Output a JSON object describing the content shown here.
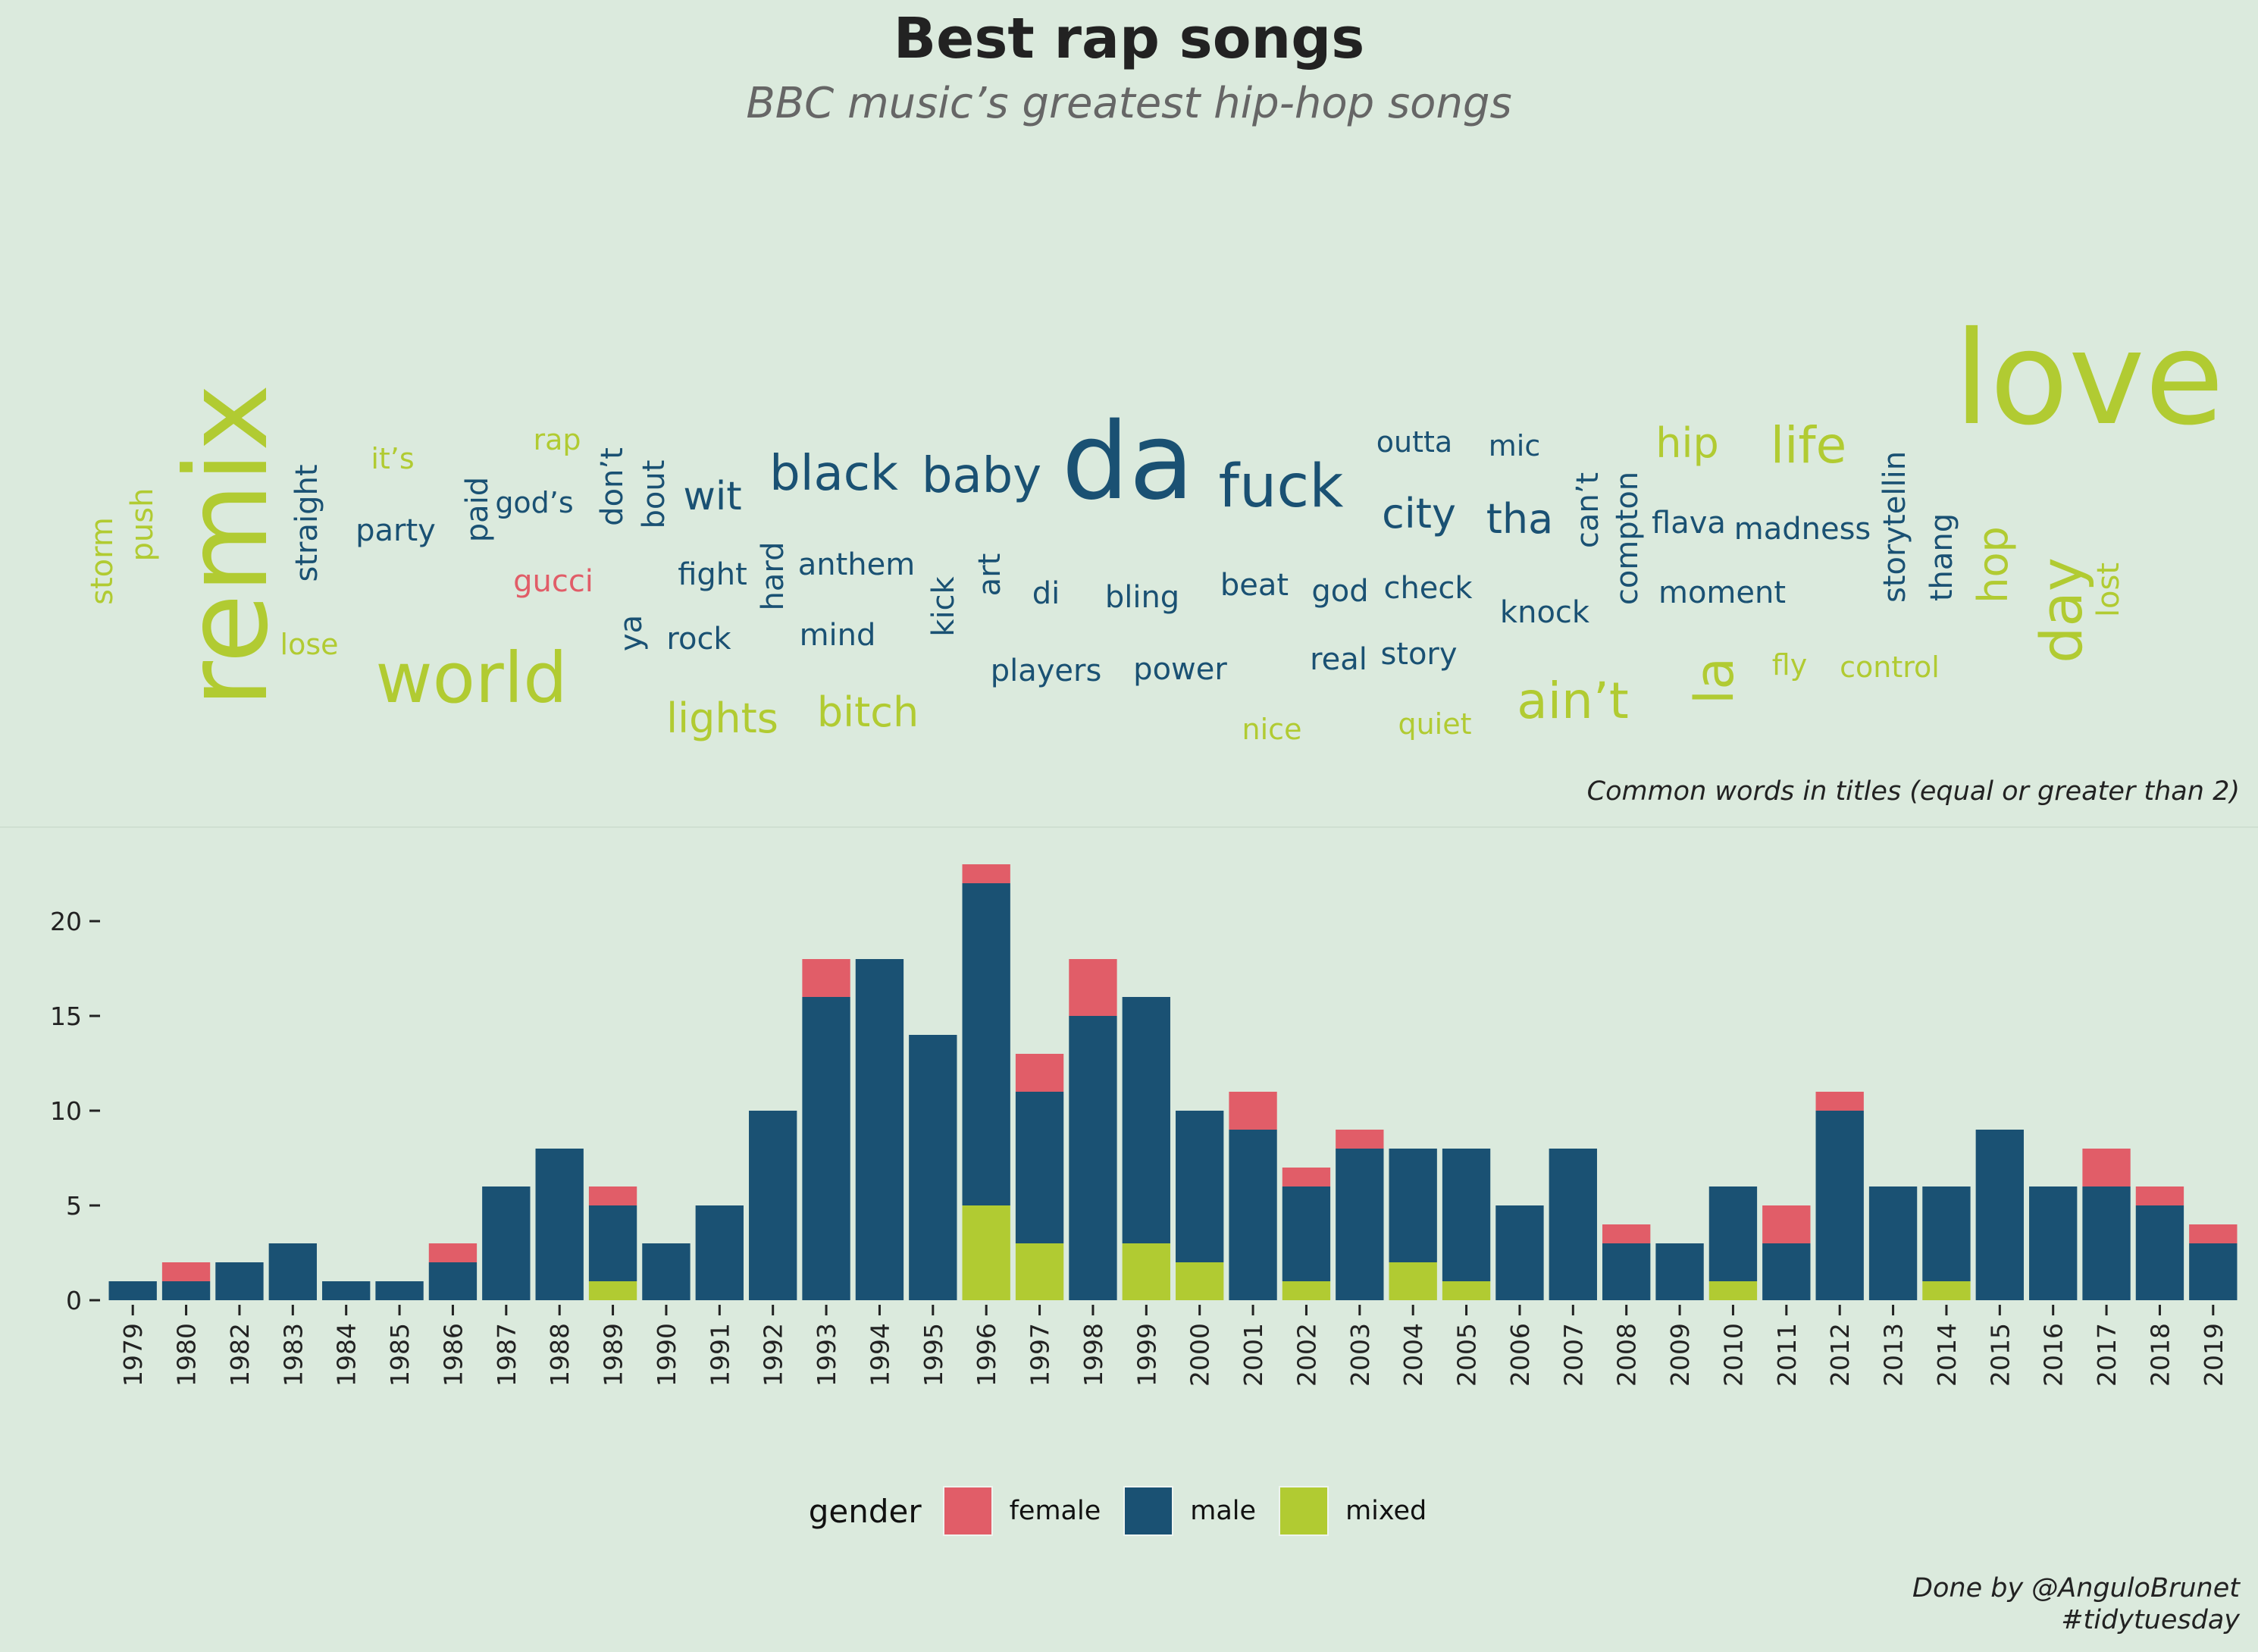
{
  "title": "Best rap songs",
  "subtitle": "BBC music’s greatest hip-hop songs",
  "wordcloud": {
    "caption": "Common words in titles (equal or greater than 2)",
    "colors": {
      "female": "#e15d68",
      "male": "#1a5173",
      "mixed": "#b1cb32"
    },
    "words": [
      {
        "text": "storm",
        "gender": "mixed"
      },
      {
        "text": "push",
        "gender": "mixed"
      },
      {
        "text": "remix",
        "gender": "mixed"
      },
      {
        "text": "straight",
        "gender": "male"
      },
      {
        "text": "it’s",
        "gender": "mixed"
      },
      {
        "text": "party",
        "gender": "male"
      },
      {
        "text": "lose",
        "gender": "mixed"
      },
      {
        "text": "world",
        "gender": "mixed"
      },
      {
        "text": "paid",
        "gender": "male"
      },
      {
        "text": "god’s",
        "gender": "male"
      },
      {
        "text": "rap",
        "gender": "mixed"
      },
      {
        "text": "gucci",
        "gender": "female"
      },
      {
        "text": "don’t",
        "gender": "male"
      },
      {
        "text": "bout",
        "gender": "male"
      },
      {
        "text": "ya",
        "gender": "male"
      },
      {
        "text": "wit",
        "gender": "male"
      },
      {
        "text": "fight",
        "gender": "male"
      },
      {
        "text": "rock",
        "gender": "male"
      },
      {
        "text": "lights",
        "gender": "mixed"
      },
      {
        "text": "hard",
        "gender": "male"
      },
      {
        "text": "black",
        "gender": "male"
      },
      {
        "text": "anthem",
        "gender": "male"
      },
      {
        "text": "mind",
        "gender": "male"
      },
      {
        "text": "bitch",
        "gender": "mixed"
      },
      {
        "text": "baby",
        "gender": "male"
      },
      {
        "text": "kick",
        "gender": "male"
      },
      {
        "text": "art",
        "gender": "male"
      },
      {
        "text": "di",
        "gender": "male"
      },
      {
        "text": "players",
        "gender": "male"
      },
      {
        "text": "da",
        "gender": "male"
      },
      {
        "text": "bling",
        "gender": "male"
      },
      {
        "text": "power",
        "gender": "male"
      },
      {
        "text": "fuck",
        "gender": "male"
      },
      {
        "text": "beat",
        "gender": "male"
      },
      {
        "text": "nice",
        "gender": "mixed"
      },
      {
        "text": "god",
        "gender": "male"
      },
      {
        "text": "real",
        "gender": "male"
      },
      {
        "text": "outta",
        "gender": "male"
      },
      {
        "text": "city",
        "gender": "male"
      },
      {
        "text": "check",
        "gender": "male"
      },
      {
        "text": "story",
        "gender": "male"
      },
      {
        "text": "quiet",
        "gender": "mixed"
      },
      {
        "text": "mic",
        "gender": "male"
      },
      {
        "text": "tha",
        "gender": "male"
      },
      {
        "text": "knock",
        "gender": "male"
      },
      {
        "text": "ain’t",
        "gender": "mixed"
      },
      {
        "text": "can’t",
        "gender": "male"
      },
      {
        "text": "compton",
        "gender": "male"
      },
      {
        "text": "hip",
        "gender": "mixed"
      },
      {
        "text": "flava",
        "gender": "male"
      },
      {
        "text": "moment",
        "gender": "male"
      },
      {
        "text": "la",
        "gender": "mixed"
      },
      {
        "text": "life",
        "gender": "mixed"
      },
      {
        "text": "madness",
        "gender": "male"
      },
      {
        "text": "fly",
        "gender": "mixed"
      },
      {
        "text": "control",
        "gender": "mixed"
      },
      {
        "text": "storytellin",
        "gender": "male"
      },
      {
        "text": "thang",
        "gender": "male"
      },
      {
        "text": "hop",
        "gender": "mixed"
      },
      {
        "text": "love",
        "gender": "mixed"
      },
      {
        "text": "day",
        "gender": "mixed"
      },
      {
        "text": "lost",
        "gender": "mixed"
      }
    ]
  },
  "chart_data": {
    "type": "bar",
    "stacked": true,
    "categories": [
      "1979",
      "1980",
      "1982",
      "1983",
      "1984",
      "1985",
      "1986",
      "1987",
      "1988",
      "1989",
      "1990",
      "1991",
      "1992",
      "1993",
      "1994",
      "1995",
      "1996",
      "1997",
      "1998",
      "1999",
      "2000",
      "2001",
      "2002",
      "2003",
      "2004",
      "2005",
      "2006",
      "2007",
      "2008",
      "2009",
      "2010",
      "2011",
      "2012",
      "2013",
      "2014",
      "2015",
      "2016",
      "2017",
      "2018",
      "2019"
    ],
    "series": [
      {
        "name": "mixed",
        "color": "#b1cb32",
        "values": [
          0,
          0,
          0,
          0,
          0,
          0,
          0,
          0,
          0,
          1,
          0,
          0,
          0,
          0,
          0,
          0,
          5,
          3,
          0,
          3,
          2,
          0,
          1,
          0,
          2,
          1,
          0,
          0,
          0,
          0,
          1,
          0,
          0,
          0,
          1,
          0,
          0,
          0,
          0,
          0
        ]
      },
      {
        "name": "male",
        "color": "#1a5173",
        "values": [
          1,
          1,
          2,
          3,
          1,
          1,
          2,
          6,
          8,
          4,
          3,
          5,
          10,
          16,
          18,
          14,
          17,
          8,
          15,
          13,
          8,
          9,
          5,
          8,
          6,
          7,
          5,
          8,
          3,
          3,
          5,
          3,
          10,
          6,
          5,
          9,
          6,
          6,
          5,
          3
        ]
      },
      {
        "name": "female",
        "color": "#e15d68",
        "values": [
          0,
          1,
          0,
          0,
          0,
          0,
          1,
          0,
          0,
          1,
          0,
          0,
          0,
          2,
          0,
          0,
          1,
          2,
          3,
          0,
          0,
          2,
          1,
          1,
          0,
          0,
          0,
          0,
          1,
          0,
          0,
          2,
          1,
          0,
          0,
          0,
          0,
          2,
          1,
          1
        ]
      }
    ],
    "yticks": [
      0,
      5,
      10,
      15,
      20
    ],
    "ylim": [
      0,
      23
    ],
    "xlabel": "",
    "ylabel": "",
    "grid": false,
    "legend": {
      "title": "gender",
      "position": "bottom",
      "order": [
        "female",
        "male",
        "mixed"
      ]
    }
  },
  "credit": {
    "line1": "Done by @AnguloBrunet",
    "line2": "#tidytuesday"
  }
}
